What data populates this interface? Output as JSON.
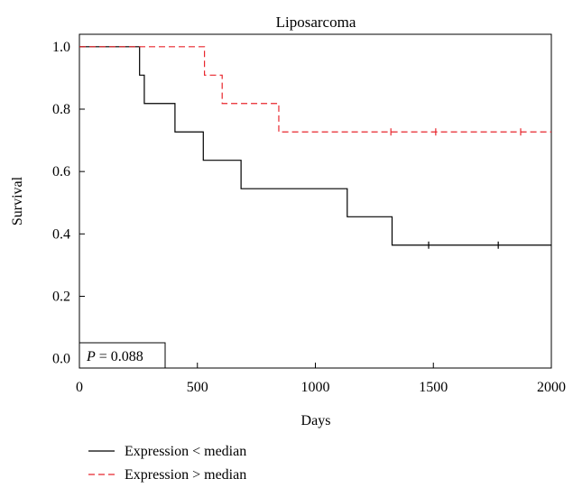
{
  "chart_data": {
    "type": "line",
    "title": "Liposarcoma",
    "xlabel": "Days",
    "ylabel": "Survival",
    "xlim": [
      0,
      2000
    ],
    "ylim": [
      -0.03,
      1.04
    ],
    "x_ticks": [
      0,
      500,
      1000,
      1500,
      2000
    ],
    "x_tick_labels": [
      "0",
      "500",
      "1000",
      "1500",
      "2000"
    ],
    "y_ticks": [
      0.0,
      0.2,
      0.4,
      0.6,
      0.8,
      1.0
    ],
    "y_tick_labels": [
      "0.0",
      "0.2",
      "0.4",
      "0.6",
      "0.8",
      "1.0"
    ],
    "grid": false,
    "legend_position": "bottom-left",
    "annotation": {
      "p_label": "P",
      "p_value": " = 0.088"
    },
    "series": [
      {
        "name": "Expression < median",
        "color": "#000000",
        "dash": "solid",
        "steps": [
          [
            0,
            1.0
          ],
          [
            255,
            0.909
          ],
          [
            275,
            0.818
          ],
          [
            405,
            0.727
          ],
          [
            525,
            0.636
          ],
          [
            685,
            0.545
          ],
          [
            1135,
            0.455
          ],
          [
            1325,
            0.364
          ],
          [
            2000,
            0.364
          ]
        ],
        "censored": [
          [
            1480,
            0.364
          ],
          [
            1775,
            0.364
          ]
        ]
      },
      {
        "name": "Expression > median",
        "color": "#e8262d",
        "dash": "dashed",
        "steps": [
          [
            0,
            1.0
          ],
          [
            530,
            0.909
          ],
          [
            605,
            0.818
          ],
          [
            845,
            0.727
          ],
          [
            2000,
            0.727
          ]
        ],
        "censored": [
          [
            1320,
            0.727
          ],
          [
            1510,
            0.727
          ],
          [
            1870,
            0.727
          ]
        ]
      }
    ]
  }
}
